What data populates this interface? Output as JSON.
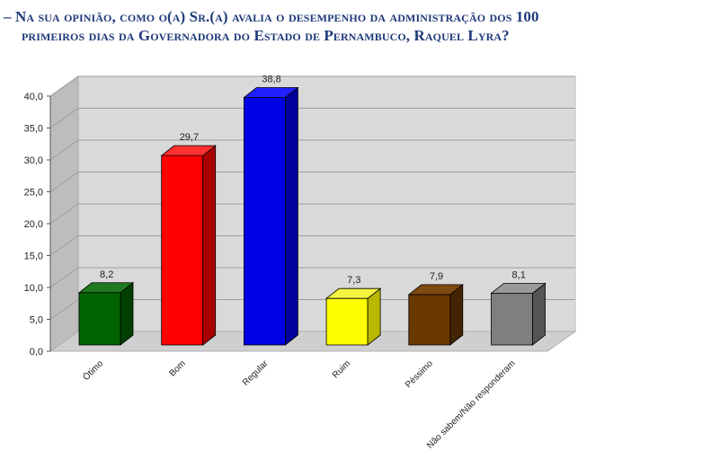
{
  "title": {
    "line1": "– Na sua opinião, como o(a) Sr.(a) avalia o desempenho da administração dos 100",
    "line2": "primeiros dias da Governadora do Estado de Pernambuco, Raquel Lyra?"
  },
  "chart_data": {
    "type": "bar",
    "categories": [
      "Ótimo",
      "Bom",
      "Regular",
      "Ruim",
      "Péssimo",
      "Não sabem/Não responderam"
    ],
    "values": [
      8.2,
      29.7,
      38.8,
      7.3,
      7.9,
      8.1
    ],
    "value_labels": [
      "8,2",
      "29,7",
      "38,8",
      "7,3",
      "7,9",
      "8,1"
    ],
    "ylim": [
      0,
      40
    ],
    "yticks": [
      "0,0",
      "5,0",
      "10,0",
      "15,0",
      "20,0",
      "25,0",
      "30,0",
      "35,0",
      "40,0"
    ],
    "grid": true,
    "legend": "none",
    "colors": [
      {
        "front": "#006400",
        "side": "#003f00",
        "top": "#1f7a1f"
      },
      {
        "front": "#ff0000",
        "side": "#a80000",
        "top": "#ff3030"
      },
      {
        "front": "#0000e6",
        "side": "#00009a",
        "top": "#2020ff"
      },
      {
        "front": "#ffff00",
        "side": "#b8b800",
        "top": "#f5f540"
      },
      {
        "front": "#6b3800",
        "side": "#432300",
        "top": "#7d4a10"
      },
      {
        "front": "#7f7f7f",
        "side": "#555555",
        "top": "#9a9a9a"
      }
    ]
  }
}
